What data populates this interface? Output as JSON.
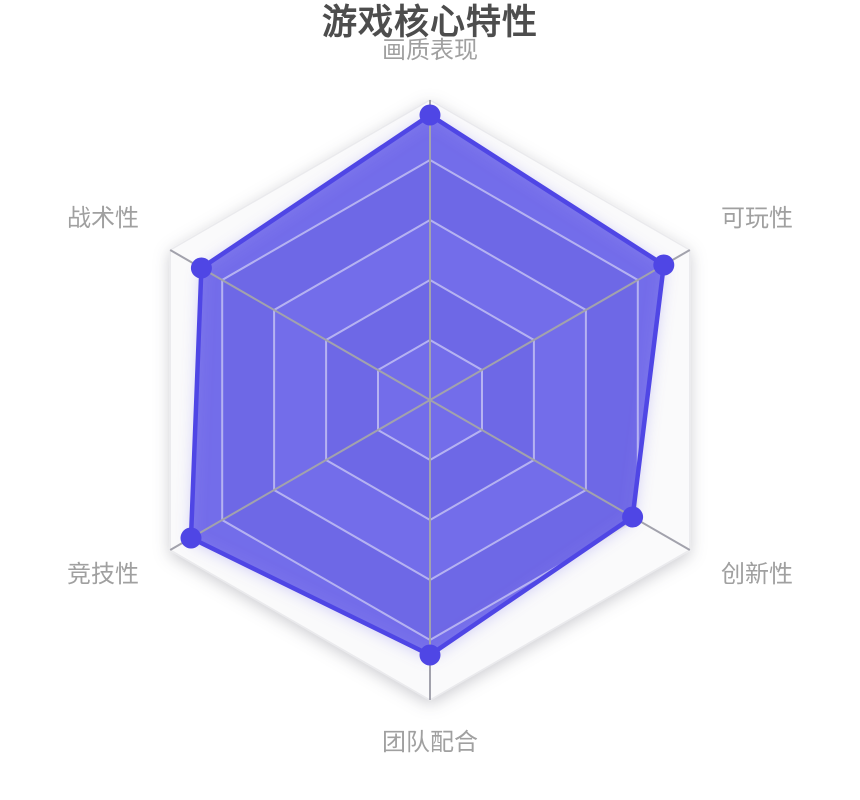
{
  "page": {
    "background": "#ffffff"
  },
  "chart_data": {
    "type": "radar",
    "title": "游戏核心特性",
    "shape": "hexagon",
    "levels": 5,
    "max": 100,
    "min": 0,
    "grid_on": true,
    "legend_visible": false,
    "indicators": [
      "画质表现",
      "可玩性",
      "创新性",
      "团队配合",
      "竞技性",
      "战术性"
    ],
    "series": [
      {
        "name": "游戏核心特性",
        "values": [
          95,
          90,
          78,
          85,
          92,
          88
        ]
      }
    ],
    "colors": {
      "accent": "#4f46e5",
      "fill_opacity": 0.7,
      "band_light": "#fafafb",
      "band_dark": "#e2e2e8",
      "grid_line": "#d4d4da",
      "ring_highlight": "#ffffff",
      "axis_line": "#a2a2ac",
      "label": "#a0a0a0",
      "title": "#4d4d4d"
    }
  }
}
